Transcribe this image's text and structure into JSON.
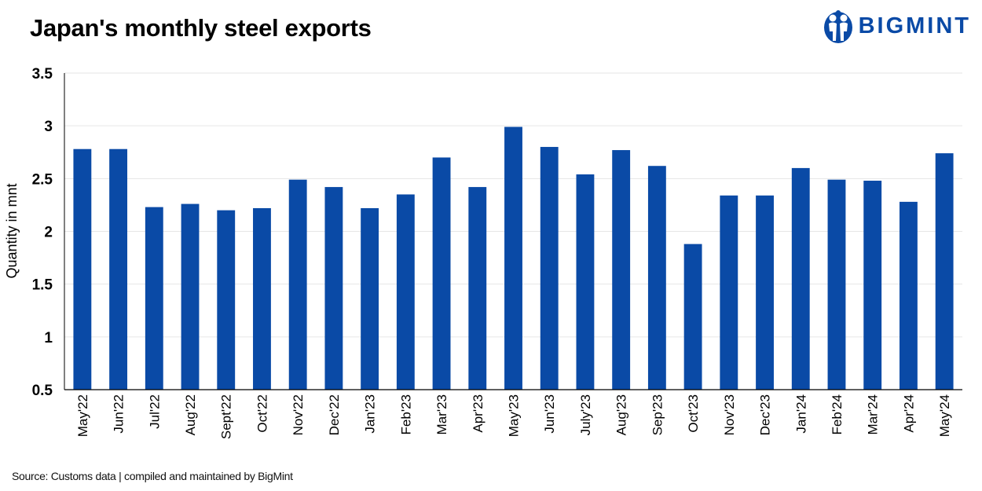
{
  "header": {
    "title": "Japan's monthly steel exports",
    "logo_text": "BIGMINT",
    "logo_icon": "bigmint-people-icon"
  },
  "footer": {
    "source": "Source: Customs data | compiled and maintained by BigMint"
  },
  "colors": {
    "bar": "#0a4aa6",
    "grid": "#e6e6e6",
    "axis": "#000000"
  },
  "chart_data": {
    "type": "bar",
    "title": "Japan's monthly steel exports",
    "xlabel": "",
    "ylabel": "Quantity in mnt",
    "ylim": [
      0.5,
      3.5
    ],
    "yticks": [
      "0.5",
      "1",
      "1.5",
      "2",
      "2.5",
      "3",
      "3.5"
    ],
    "grid": true,
    "legend": "none",
    "categories": [
      "May'22",
      "Jun'22",
      "Jul'22",
      "Aug'22",
      "Sept'22",
      "Oct'22",
      "Nov'22",
      "Dec'22",
      "Jan'23",
      "Feb'23",
      "Mar'23",
      "Apr'23",
      "May'23",
      "Jun'23",
      "July'23",
      "Aug'23",
      "Sep'23",
      "Oct'23",
      "Nov'23",
      "Dec'23",
      "Jan'24",
      "Feb'24",
      "Mar'24",
      "Apr'24",
      "May'24"
    ],
    "values": [
      2.78,
      2.78,
      2.23,
      2.26,
      2.2,
      2.22,
      2.49,
      2.42,
      2.22,
      2.35,
      2.7,
      2.42,
      2.99,
      2.8,
      2.54,
      2.77,
      2.62,
      1.88,
      2.34,
      2.34,
      2.6,
      2.49,
      2.48,
      2.28,
      2.74
    ]
  }
}
